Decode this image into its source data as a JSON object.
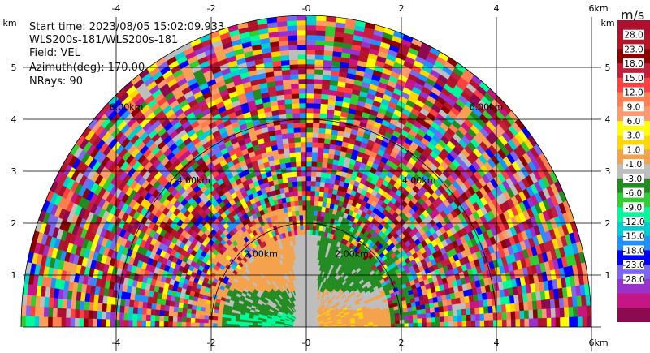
{
  "info": {
    "start_time": "Start time: 2023/08/05 15:02:09.933",
    "instrument": "WLS200s-181/WLS200s-181",
    "field": "Field: VEL",
    "azimuth": "Azimuth(deg): 170.00",
    "nrays": "NRays: 90"
  },
  "chart_data": {
    "type": "heatmap",
    "projection": "RHI polar (range-height)",
    "xlabel_unit": "km",
    "ylabel_unit": "km",
    "xlim": [
      -6,
      6
    ],
    "ylim": [
      0,
      5.8
    ],
    "x_ticks": [
      "-4",
      "-2",
      "-0",
      "2",
      "4",
      "6"
    ],
    "y_ticks": [
      "1",
      "2",
      "3",
      "4",
      "5"
    ],
    "range_rings": [
      {
        "range": 2,
        "label": "2.00km"
      },
      {
        "range": 4,
        "label": "4.00km"
      },
      {
        "range": 6,
        "label": "6.00km"
      }
    ],
    "max_range": 6,
    "colorbar": {
      "unit": "m/s",
      "labels": [
        "28.0",
        "23.0",
        "18.0",
        "15.0",
        "12.0",
        "9.0",
        "6.0",
        "3.0",
        "1.0",
        "-1.0",
        "-3.0",
        "-6.0",
        "-9.0",
        "-12.0",
        "-15.0",
        "-18.0",
        "-23.0",
        "-28.0"
      ],
      "colors": [
        "#b01030",
        "#b81428",
        "#8b0000",
        "#c41e3a",
        "#ff4040",
        "#ff7f50",
        "#ff9a6e",
        "#ffff00",
        "#ffd700",
        "#f4a24c",
        "#bebebe",
        "#228b22",
        "#32cd32",
        "#00fa9a",
        "#00ced1",
        "#1e90ff",
        "#0000ff",
        "#7b68ee",
        "#9932cc",
        "#c71585",
        "#8b0a50"
      ]
    }
  }
}
